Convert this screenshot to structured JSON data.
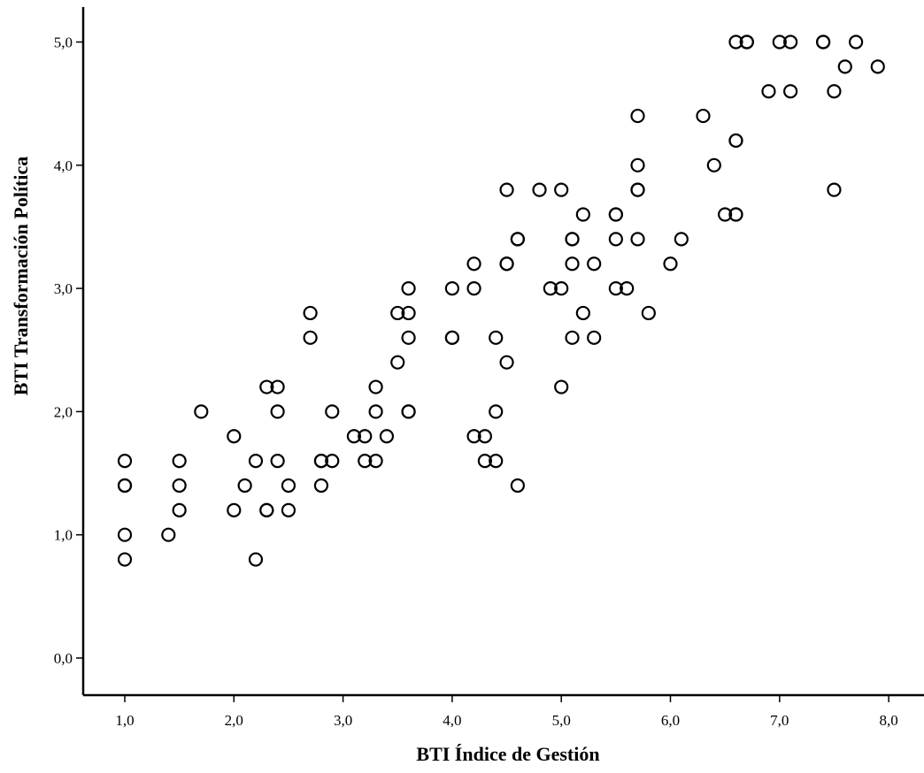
{
  "chart_data": {
    "type": "scatter",
    "xlabel": "BTI Índice de Gestión",
    "ylabel": "BTI Transformación Política",
    "xlim": [
      0.6,
      8.3
    ],
    "ylim": [
      -0.25,
      5.3
    ],
    "x_ticks": [
      1,
      2,
      3,
      4,
      5,
      6,
      7,
      8
    ],
    "x_tick_labels": [
      "1,0",
      "2,0",
      "3,0",
      "4,0",
      "5,0",
      "6,0",
      "7,0",
      "8,0"
    ],
    "y_ticks": [
      0,
      1,
      2,
      3,
      4,
      5
    ],
    "y_tick_labels": [
      "0,0",
      "1,0",
      "2,0",
      "3,0",
      "4,0",
      "5,0"
    ],
    "grid": false,
    "legend": "none",
    "marker": "open-circle",
    "points": [
      [
        1.0,
        1.6
      ],
      [
        1.0,
        1.4
      ],
      [
        1.0,
        1.4
      ],
      [
        1.0,
        1.0
      ],
      [
        1.0,
        0.8
      ],
      [
        1.4,
        1.0
      ],
      [
        1.5,
        1.6
      ],
      [
        1.5,
        1.4
      ],
      [
        1.5,
        1.2
      ],
      [
        1.7,
        2.0
      ],
      [
        2.0,
        1.8
      ],
      [
        2.0,
        1.2
      ],
      [
        2.1,
        1.4
      ],
      [
        2.2,
        1.6
      ],
      [
        2.2,
        0.8
      ],
      [
        2.3,
        2.2
      ],
      [
        2.3,
        1.2
      ],
      [
        2.3,
        1.2
      ],
      [
        2.4,
        2.2
      ],
      [
        2.4,
        2.0
      ],
      [
        2.4,
        1.6
      ],
      [
        2.5,
        1.4
      ],
      [
        2.5,
        1.2
      ],
      [
        2.7,
        2.8
      ],
      [
        2.7,
        2.6
      ],
      [
        2.8,
        1.6
      ],
      [
        2.8,
        1.6
      ],
      [
        2.8,
        1.4
      ],
      [
        2.9,
        2.0
      ],
      [
        2.9,
        1.6
      ],
      [
        3.1,
        1.8
      ],
      [
        3.2,
        1.8
      ],
      [
        3.2,
        1.6
      ],
      [
        3.3,
        2.2
      ],
      [
        3.3,
        2.0
      ],
      [
        3.3,
        1.6
      ],
      [
        3.4,
        1.8
      ],
      [
        3.5,
        2.8
      ],
      [
        3.5,
        2.4
      ],
      [
        3.6,
        3.0
      ],
      [
        3.6,
        2.8
      ],
      [
        3.6,
        2.6
      ],
      [
        3.6,
        2.0
      ],
      [
        3.6,
        2.0
      ],
      [
        4.0,
        3.0
      ],
      [
        4.0,
        2.6
      ],
      [
        4.0,
        2.6
      ],
      [
        4.2,
        3.2
      ],
      [
        4.2,
        3.0
      ],
      [
        4.2,
        1.8
      ],
      [
        4.3,
        1.8
      ],
      [
        4.3,
        1.6
      ],
      [
        4.4,
        2.6
      ],
      [
        4.4,
        2.0
      ],
      [
        4.4,
        1.6
      ],
      [
        4.5,
        3.8
      ],
      [
        4.5,
        3.2
      ],
      [
        4.5,
        3.2
      ],
      [
        4.5,
        2.4
      ],
      [
        4.6,
        3.4
      ],
      [
        4.6,
        3.4
      ],
      [
        4.6,
        1.4
      ],
      [
        4.8,
        3.8
      ],
      [
        4.9,
        3.0
      ],
      [
        5.0,
        3.8
      ],
      [
        5.0,
        3.0
      ],
      [
        5.0,
        2.2
      ],
      [
        5.1,
        3.4
      ],
      [
        5.1,
        3.4
      ],
      [
        5.1,
        3.2
      ],
      [
        5.1,
        2.6
      ],
      [
        5.2,
        3.6
      ],
      [
        5.2,
        2.8
      ],
      [
        5.3,
        3.2
      ],
      [
        5.3,
        2.6
      ],
      [
        5.5,
        3.6
      ],
      [
        5.5,
        3.6
      ],
      [
        5.5,
        3.4
      ],
      [
        5.5,
        3.0
      ],
      [
        5.6,
        3.0
      ],
      [
        5.7,
        4.4
      ],
      [
        5.7,
        4.0
      ],
      [
        5.7,
        3.8
      ],
      [
        5.7,
        3.8
      ],
      [
        5.7,
        3.4
      ],
      [
        5.8,
        2.8
      ],
      [
        6.0,
        3.2
      ],
      [
        6.1,
        3.4
      ],
      [
        6.3,
        4.4
      ],
      [
        6.4,
        4.0
      ],
      [
        6.5,
        3.6
      ],
      [
        6.6,
        5.0
      ],
      [
        6.6,
        4.2
      ],
      [
        6.6,
        4.2
      ],
      [
        6.6,
        3.6
      ],
      [
        6.6,
        3.6
      ],
      [
        6.7,
        5.0
      ],
      [
        6.7,
        5.0
      ],
      [
        6.9,
        4.6
      ],
      [
        7.0,
        5.0
      ],
      [
        7.1,
        5.0
      ],
      [
        7.1,
        4.6
      ],
      [
        7.4,
        5.0
      ],
      [
        7.4,
        5.0
      ],
      [
        7.5,
        4.6
      ],
      [
        7.5,
        3.8
      ],
      [
        7.6,
        4.8
      ],
      [
        7.7,
        5.0
      ],
      [
        7.9,
        4.8
      ]
    ]
  }
}
